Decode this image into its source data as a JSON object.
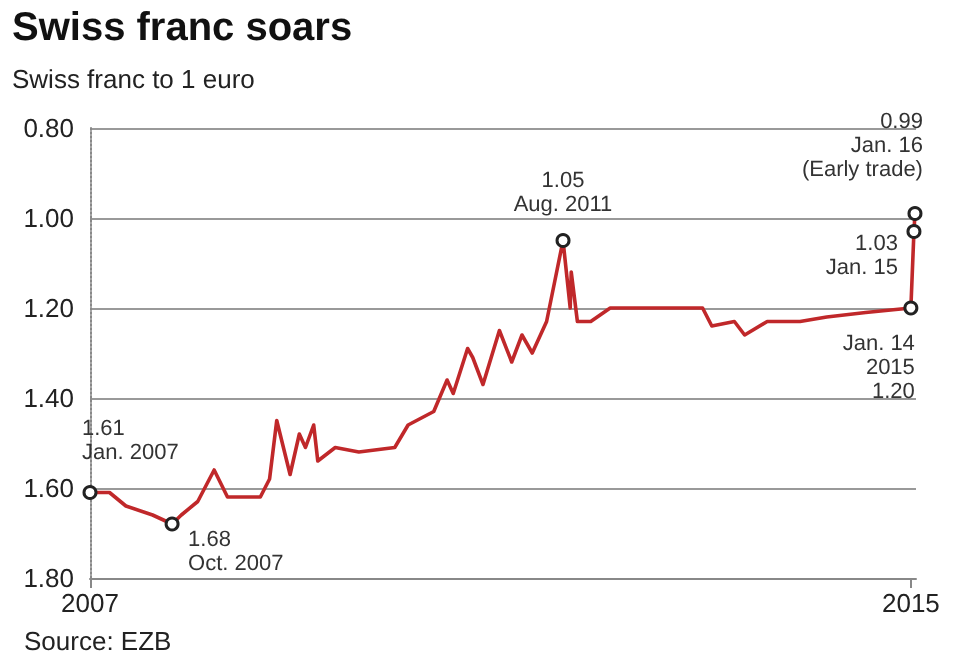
{
  "chart_data": {
    "type": "line",
    "title": "Swiss franc soars",
    "subtitle": "Swiss franc to 1 euro",
    "x": [
      2007.0,
      2007.19,
      2007.35,
      2007.61,
      2007.8,
      2007.89,
      2008.05,
      2008.21,
      2008.34,
      2008.56,
      2008.66,
      2008.75,
      2008.82,
      2008.95,
      2009.04,
      2009.1,
      2009.18,
      2009.22,
      2009.39,
      2009.62,
      2009.97,
      2010.1,
      2010.35,
      2010.48,
      2010.54,
      2010.68,
      2010.73,
      2010.83,
      2010.99,
      2011.11,
      2011.21,
      2011.31,
      2011.45,
      2011.53,
      2011.61,
      2011.68,
      2011.69,
      2011.75,
      2011.88,
      2012.07,
      2012.65,
      2012.97,
      2013.06,
      2013.28,
      2013.38,
      2013.6,
      2013.92,
      2014.18,
      2014.56,
      2015.0,
      2015.03,
      2015.04
    ],
    "series": [
      {
        "color": "#c0282a",
        "values": [
          1.61,
          1.61,
          1.64,
          1.66,
          1.68,
          1.66,
          1.63,
          1.56,
          1.62,
          1.62,
          1.62,
          1.58,
          1.45,
          1.57,
          1.48,
          1.51,
          1.46,
          1.54,
          1.51,
          1.52,
          1.51,
          1.46,
          1.43,
          1.36,
          1.39,
          1.29,
          1.31,
          1.37,
          1.25,
          1.32,
          1.26,
          1.3,
          1.23,
          1.14,
          1.05,
          1.2,
          1.12,
          1.23,
          1.23,
          1.2,
          1.2,
          1.2,
          1.24,
          1.23,
          1.26,
          1.23,
          1.23,
          1.22,
          1.21,
          1.2,
          1.03,
          0.99
        ]
      }
    ],
    "xlim": [
      2007,
      2015.05
    ],
    "xticks": [
      2007,
      2015
    ],
    "ylim": [
      1.8,
      0.8
    ],
    "yticks": [
      {
        "value": 0.8,
        "label": "0.80"
      },
      {
        "value": 1.0,
        "label": "1.00"
      },
      {
        "value": 1.2,
        "label": "1.20"
      },
      {
        "value": 1.4,
        "label": "1.40"
      },
      {
        "value": 1.6,
        "label": "1.60"
      },
      {
        "value": 1.8,
        "label": "1.80"
      }
    ],
    "grid": "y",
    "marker": "none",
    "line_style": "solid",
    "annotations": [
      {
        "text": "1.61\nJan. 2007",
        "x": 2007.0,
        "y": 1.61
      },
      {
        "text": "1.68\nOct. 2007",
        "x": 2007.8,
        "y": 1.68
      },
      {
        "text": "1.05\nAug. 2011",
        "x": 2011.61,
        "y": 1.05
      },
      {
        "text": "1.03\nJan. 15",
        "x": 2015.03,
        "y": 1.03
      },
      {
        "text": "0.99\nJan. 16\n(Early trade)",
        "x": 2015.04,
        "y": 0.99
      },
      {
        "text": "Jan. 14\n2015\n1.20",
        "x": 2015.0,
        "y": 1.2
      },
      "Source: EZB"
    ]
  }
}
